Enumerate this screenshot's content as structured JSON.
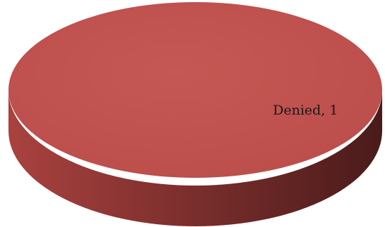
{
  "chart_data": {
    "type": "pie",
    "style": "3d",
    "slices": [
      {
        "category": "Denied",
        "value": 1,
        "label": "Denied, 1",
        "color": "#c0504d"
      }
    ]
  }
}
